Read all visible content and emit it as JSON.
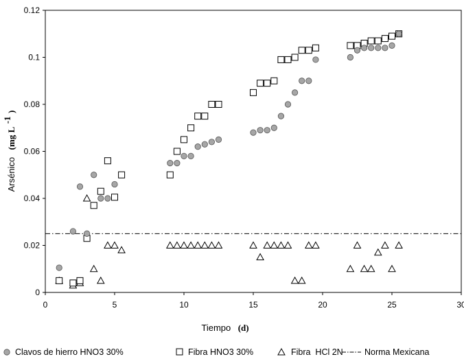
{
  "chart_data": {
    "type": "scatter",
    "xlabel": "Tiempo",
    "xunit": "(d)",
    "ylabel": "Arsénico",
    "yunit_html": "(mg L",
    "yunit_sup": "-1",
    "yunit_close": ")",
    "xlim": [
      0,
      30
    ],
    "ylim": [
      0,
      0.12
    ],
    "xticks": [
      0,
      5,
      10,
      15,
      20,
      25,
      30
    ],
    "xtick_labels": [
      "0",
      "5",
      "10",
      "15",
      "20",
      "25",
      "30"
    ],
    "yticks": [
      0,
      0.02,
      0.04,
      0.06,
      0.08,
      0.1,
      0.12
    ],
    "ytick_labels": [
      "0",
      "0.02",
      "0.04",
      "0.06",
      "0.08",
      "0.1",
      "0.12"
    ],
    "grid": false,
    "legend_position": "bottom",
    "series": [
      {
        "name": "Clavos de hierro HNO3 30%",
        "marker": "circle",
        "color": "#a6a6a6",
        "points": [
          [
            1,
            0.0105
          ],
          [
            2,
            0.026
          ],
          [
            2.5,
            0.045
          ],
          [
            3,
            0.025
          ],
          [
            3.5,
            0.05
          ],
          [
            4,
            0.04
          ],
          [
            4.5,
            0.04
          ],
          [
            5,
            0.046
          ],
          [
            9,
            0.055
          ],
          [
            9.5,
            0.055
          ],
          [
            10,
            0.058
          ],
          [
            10.5,
            0.058
          ],
          [
            11,
            0.062
          ],
          [
            11.5,
            0.063
          ],
          [
            12,
            0.064
          ],
          [
            12.5,
            0.065
          ],
          [
            15,
            0.068
          ],
          [
            15.5,
            0.069
          ],
          [
            16,
            0.069
          ],
          [
            16.5,
            0.07
          ],
          [
            17,
            0.075
          ],
          [
            17.5,
            0.08
          ],
          [
            18,
            0.085
          ],
          [
            18.5,
            0.09
          ],
          [
            19,
            0.09
          ],
          [
            19.5,
            0.099
          ],
          [
            22,
            0.1
          ],
          [
            22.5,
            0.103
          ],
          [
            23,
            0.104
          ],
          [
            23.5,
            0.104
          ],
          [
            24,
            0.104
          ],
          [
            24.5,
            0.104
          ],
          [
            25,
            0.105
          ],
          [
            25.5,
            0.11
          ]
        ]
      },
      {
        "name": "Fibra HNO3 30%",
        "marker": "square",
        "color": "#000000",
        "points": [
          [
            1,
            0.005
          ],
          [
            2,
            0.004
          ],
          [
            2.5,
            0.005
          ],
          [
            3,
            0.023
          ],
          [
            3.5,
            0.037
          ],
          [
            4,
            0.043
          ],
          [
            4.5,
            0.056
          ],
          [
            5,
            0.0405
          ],
          [
            5.5,
            0.05
          ],
          [
            9,
            0.05
          ],
          [
            9.5,
            0.06
          ],
          [
            10,
            0.065
          ],
          [
            10.5,
            0.07
          ],
          [
            11,
            0.075
          ],
          [
            11.5,
            0.075
          ],
          [
            12,
            0.08
          ],
          [
            12.5,
            0.08
          ],
          [
            15,
            0.085
          ],
          [
            15.5,
            0.089
          ],
          [
            16,
            0.089
          ],
          [
            16.5,
            0.09
          ],
          [
            17,
            0.099
          ],
          [
            17.5,
            0.099
          ],
          [
            18,
            0.1
          ],
          [
            18.5,
            0.103
          ],
          [
            19,
            0.103
          ],
          [
            19.5,
            0.104
          ],
          [
            22,
            0.105
          ],
          [
            22.5,
            0.105
          ],
          [
            23,
            0.106
          ],
          [
            23.5,
            0.107
          ],
          [
            24,
            0.107
          ],
          [
            24.5,
            0.108
          ],
          [
            25,
            0.109
          ],
          [
            25.5,
            0.11
          ]
        ]
      },
      {
        "name": "Fibra  HCl 2N",
        "marker": "triangle",
        "color": "#000000",
        "points": [
          [
            1,
            0.005
          ],
          [
            2,
            0.003
          ],
          [
            2.5,
            0.004
          ],
          [
            3,
            0.04
          ],
          [
            3.5,
            0.01
          ],
          [
            4,
            0.005
          ],
          [
            4.5,
            0.02
          ],
          [
            5,
            0.02
          ],
          [
            5.5,
            0.018
          ],
          [
            9,
            0.02
          ],
          [
            9.5,
            0.02
          ],
          [
            10,
            0.02
          ],
          [
            10.5,
            0.02
          ],
          [
            11,
            0.02
          ],
          [
            11.5,
            0.02
          ],
          [
            12,
            0.02
          ],
          [
            12.5,
            0.02
          ],
          [
            15,
            0.02
          ],
          [
            15.5,
            0.015
          ],
          [
            16,
            0.02
          ],
          [
            16.5,
            0.02
          ],
          [
            17,
            0.02
          ],
          [
            17.5,
            0.02
          ],
          [
            18,
            0.005
          ],
          [
            18.5,
            0.005
          ],
          [
            19,
            0.02
          ],
          [
            19.5,
            0.02
          ],
          [
            22,
            0.01
          ],
          [
            22.5,
            0.02
          ],
          [
            23,
            0.01
          ],
          [
            23.5,
            0.01
          ],
          [
            24,
            0.017
          ],
          [
            24.5,
            0.02
          ],
          [
            25,
            0.01
          ],
          [
            25.5,
            0.02
          ]
        ]
      }
    ],
    "reference_line": {
      "name": "Norma Mexicana",
      "y": 0.025,
      "style": "dash-dot",
      "color": "#000000"
    }
  }
}
